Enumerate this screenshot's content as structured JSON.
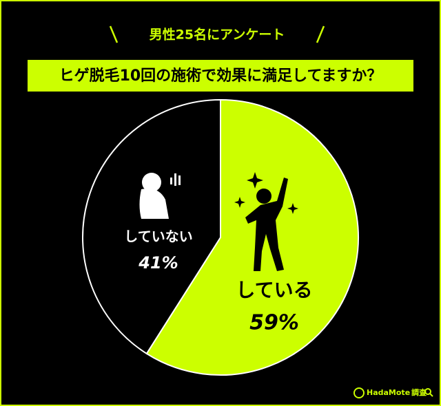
{
  "chart_data": {
    "type": "pie",
    "header": "男性25名にアンケート",
    "title": "ヒゲ脱毛10回の施術で効果に満足してますか？",
    "categories": [
      "している",
      "していない"
    ],
    "values": [
      59,
      41
    ],
    "value_labels": [
      "59%",
      "41%"
    ],
    "colors": [
      "#ccff00",
      "#000000"
    ],
    "brand": "HadaMote",
    "note": "調査"
  }
}
